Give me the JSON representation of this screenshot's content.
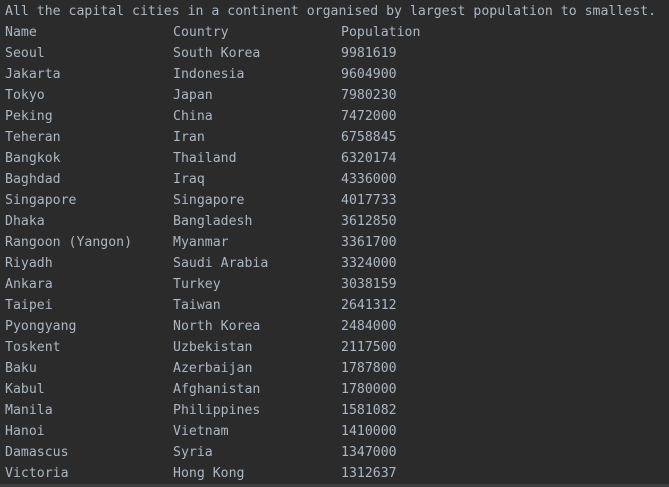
{
  "console": {
    "heading": "All the capital cities in a continent organised by largest population to smallest.",
    "columns": {
      "name": "Name",
      "country": "Country",
      "population": "Population"
    },
    "rows": [
      {
        "name": "Seoul",
        "country": "South Korea",
        "population": "9981619"
      },
      {
        "name": "Jakarta",
        "country": "Indonesia",
        "population": "9604900"
      },
      {
        "name": "Tokyo",
        "country": "Japan",
        "population": "7980230"
      },
      {
        "name": "Peking",
        "country": "China",
        "population": "7472000"
      },
      {
        "name": "Teheran",
        "country": "Iran",
        "population": "6758845"
      },
      {
        "name": "Bangkok",
        "country": "Thailand",
        "population": "6320174"
      },
      {
        "name": "Baghdad",
        "country": "Iraq",
        "population": "4336000"
      },
      {
        "name": "Singapore",
        "country": "Singapore",
        "population": "4017733"
      },
      {
        "name": "Dhaka",
        "country": "Bangladesh",
        "population": "3612850"
      },
      {
        "name": "Rangoon (Yangon)",
        "country": "Myanmar",
        "population": "3361700"
      },
      {
        "name": "Riyadh",
        "country": "Saudi Arabia",
        "population": "3324000"
      },
      {
        "name": "Ankara",
        "country": "Turkey",
        "population": "3038159"
      },
      {
        "name": "Taipei",
        "country": "Taiwan",
        "population": "2641312"
      },
      {
        "name": "Pyongyang",
        "country": "North Korea",
        "population": "2484000"
      },
      {
        "name": "Toskent",
        "country": "Uzbekistan",
        "population": "2117500"
      },
      {
        "name": "Baku",
        "country": "Azerbaijan",
        "population": "1787800"
      },
      {
        "name": "Kabul",
        "country": "Afghanistan",
        "population": "1780000"
      },
      {
        "name": "Manila",
        "country": "Philippines",
        "population": "1581082"
      },
      {
        "name": "Hanoi",
        "country": "Vietnam",
        "population": "1410000"
      },
      {
        "name": "Damascus",
        "country": "Syria",
        "population": "1347000"
      },
      {
        "name": "Victoria",
        "country": "Hong Kong",
        "population": "1312637"
      }
    ]
  }
}
